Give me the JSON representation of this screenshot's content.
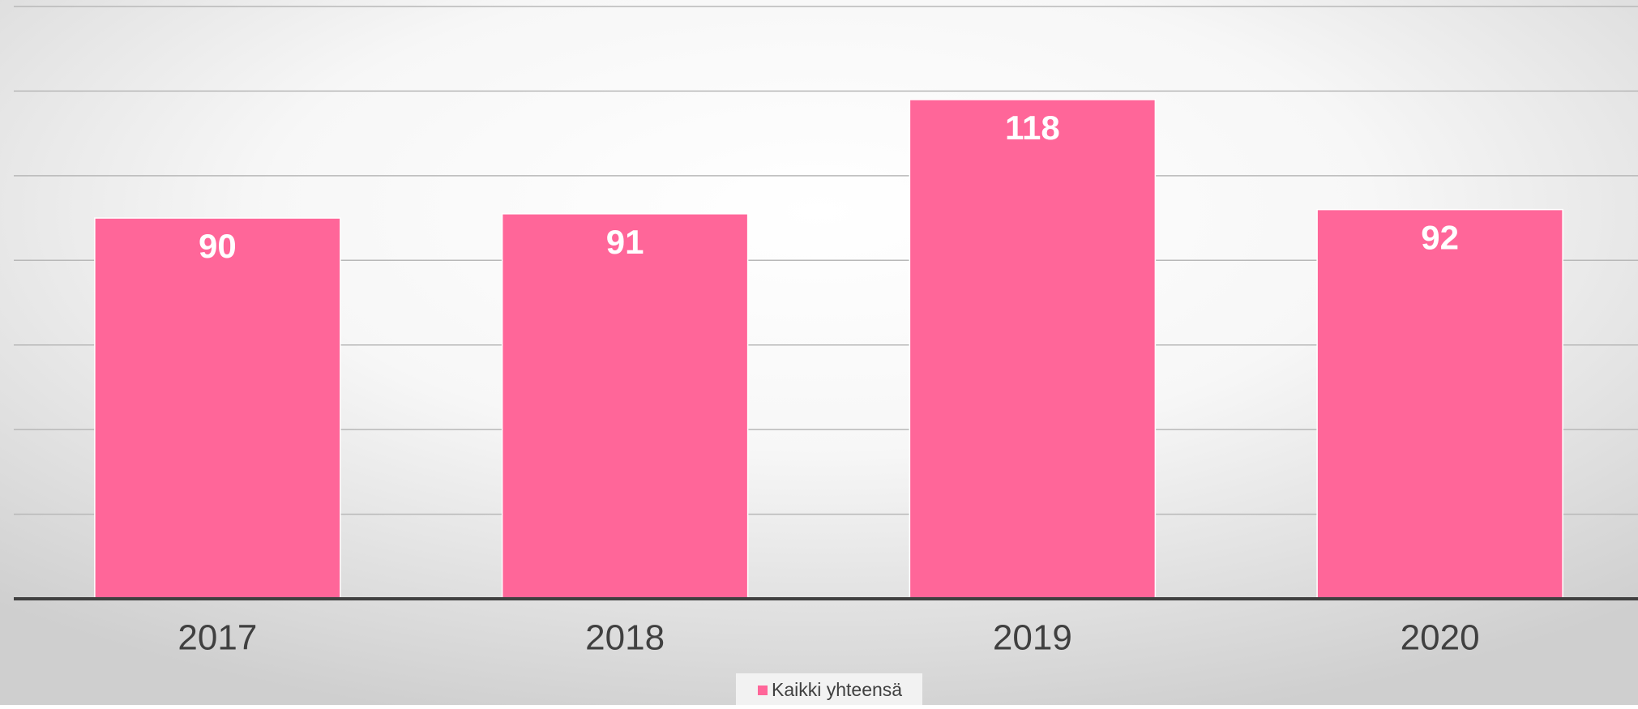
{
  "chart_data": {
    "type": "bar",
    "categories": [
      "2017",
      "2018",
      "2019",
      "2020"
    ],
    "series": [
      {
        "name": "Kaikki yhteensä",
        "color": "#ff6699",
        "values": [
          90,
          91,
          118,
          92
        ]
      }
    ],
    "ylim": [
      0,
      140
    ],
    "yticks": [
      0,
      20,
      40,
      60,
      80,
      100,
      120,
      140
    ],
    "grid": true,
    "legend": "bottom"
  }
}
